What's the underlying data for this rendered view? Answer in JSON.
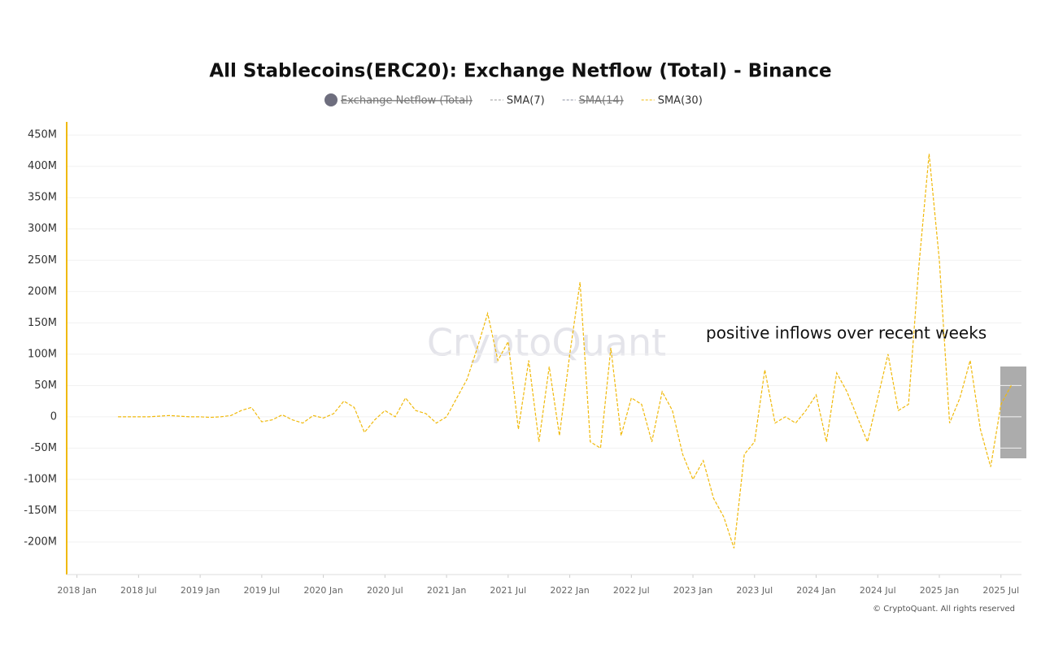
{
  "chart_data": {
    "type": "line",
    "title": "All Stablecoins(ERC20): Exchange Netflow (Total) - Binance",
    "watermark": "CryptoQuant",
    "copyright": "© CryptoQuant. All rights reserved",
    "annotation": "positive inflows over recent weeks",
    "x": [
      "2018-05",
      "2018-06",
      "2018-07",
      "2018-08",
      "2018-09",
      "2018-10",
      "2018-11",
      "2018-12",
      "2019-01",
      "2019-02",
      "2019-03",
      "2019-04",
      "2019-05",
      "2019-06",
      "2019-07",
      "2019-08",
      "2019-09",
      "2019-10",
      "2019-11",
      "2019-12",
      "2020-01",
      "2020-02",
      "2020-03",
      "2020-04",
      "2020-05",
      "2020-06",
      "2020-07",
      "2020-08",
      "2020-09",
      "2020-10",
      "2020-11",
      "2020-12",
      "2021-01",
      "2021-02",
      "2021-03",
      "2021-04",
      "2021-05",
      "2021-06",
      "2021-07",
      "2021-08",
      "2021-09",
      "2021-10",
      "2021-11",
      "2021-12",
      "2022-01",
      "2022-02",
      "2022-03",
      "2022-04",
      "2022-05",
      "2022-06",
      "2022-07",
      "2022-08",
      "2022-09",
      "2022-10",
      "2022-11",
      "2022-12",
      "2023-01",
      "2023-02",
      "2023-03",
      "2023-04",
      "2023-05",
      "2023-06",
      "2023-07",
      "2023-08",
      "2023-09",
      "2023-10",
      "2023-11",
      "2023-12",
      "2024-01",
      "2024-02",
      "2024-03",
      "2024-04",
      "2024-05",
      "2024-06",
      "2024-07",
      "2024-08",
      "2024-09",
      "2024-10",
      "2024-11",
      "2024-12",
      "2025-01",
      "2025-02",
      "2025-03",
      "2025-04",
      "2025-05",
      "2025-06",
      "2025-07",
      "2025-08"
    ],
    "series": [
      {
        "name": "Exchange Netflow (Total)",
        "color": "#6e6e7e",
        "visible": false,
        "marker": "circle"
      },
      {
        "name": "SMA(7)",
        "color": "#9a9a9a",
        "visible": true,
        "marker": "dash"
      },
      {
        "name": "SMA(14)",
        "color": "#8a8fa0",
        "visible": false,
        "marker": "dash"
      },
      {
        "name": "SMA(30)",
        "color": "#f0b90b",
        "visible": true,
        "marker": "dash",
        "values": [
          0,
          0,
          0,
          0,
          1,
          2,
          1,
          0,
          0,
          -1,
          0,
          2,
          10,
          15,
          -8,
          -5,
          3,
          -5,
          -10,
          2,
          -2,
          5,
          25,
          15,
          -25,
          -5,
          10,
          0,
          30,
          10,
          5,
          -10,
          0,
          30,
          60,
          110,
          165,
          90,
          120,
          -20,
          90,
          -40,
          80,
          -30,
          100,
          215,
          -40,
          -50,
          110,
          -30,
          30,
          20,
          -40,
          40,
          10,
          -60,
          -100,
          -70,
          -130,
          -160,
          -210,
          -60,
          -40,
          75,
          -10,
          0,
          -10,
          10,
          35,
          -40,
          70,
          40,
          0,
          -40,
          30,
          100,
          10,
          20,
          240,
          420,
          250,
          -10,
          30,
          90,
          -20,
          -80,
          20,
          50
        ]
      }
    ],
    "xlim": [
      "2017-12",
      "2025-09"
    ],
    "xticks": [
      {
        "value": "2018-01",
        "label": "2018 Jan"
      },
      {
        "value": "2018-07",
        "label": "2018 Jul"
      },
      {
        "value": "2019-01",
        "label": "2019 Jan"
      },
      {
        "value": "2019-07",
        "label": "2019 Jul"
      },
      {
        "value": "2020-01",
        "label": "2020 Jan"
      },
      {
        "value": "2020-07",
        "label": "2020 Jul"
      },
      {
        "value": "2021-01",
        "label": "2021 Jan"
      },
      {
        "value": "2021-07",
        "label": "2021 Jul"
      },
      {
        "value": "2022-01",
        "label": "2022 Jan"
      },
      {
        "value": "2022-07",
        "label": "2022 Jul"
      },
      {
        "value": "2023-01",
        "label": "2023 Jan"
      },
      {
        "value": "2023-07",
        "label": "2023 Jul"
      },
      {
        "value": "2024-01",
        "label": "2024 Jan"
      },
      {
        "value": "2024-07",
        "label": "2024 Jul"
      },
      {
        "value": "2025-01",
        "label": "2025 Jan"
      },
      {
        "value": "2025-07",
        "label": "2025 Jul"
      }
    ],
    "ylim": [
      -252,
      471
    ],
    "yticks": [
      {
        "value": -200,
        "label": "-200M"
      },
      {
        "value": -150,
        "label": "-150M"
      },
      {
        "value": -100,
        "label": "-100M"
      },
      {
        "value": -50,
        "label": "-50M"
      },
      0,
      {
        "value": 50,
        "label": "50M"
      },
      {
        "value": 100,
        "label": "100M"
      },
      {
        "value": 150,
        "label": "150M"
      },
      {
        "value": 200,
        "label": "200M"
      },
      {
        "value": 250,
        "label": "250M"
      },
      {
        "value": 300,
        "label": "300M"
      },
      {
        "value": 350,
        "label": "350M"
      },
      {
        "value": 400,
        "label": "400M"
      },
      {
        "value": 450,
        "label": "450M"
      }
    ],
    "grid": true
  }
}
